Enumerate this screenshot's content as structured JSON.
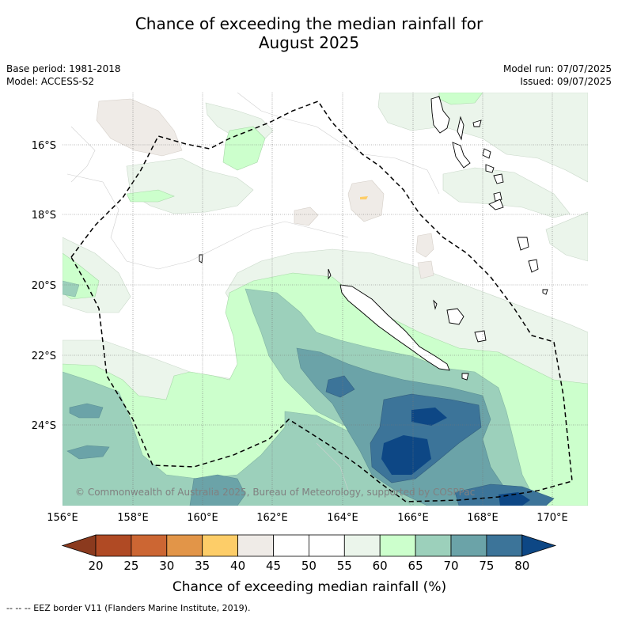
{
  "title": {
    "line1": "Chance of exceeding the median rainfall for",
    "line2": "August 2025"
  },
  "meta": {
    "base_period": "Base period: 1981-2018",
    "model": "Model: ACCESS-S2",
    "model_run": "Model run: 07/07/2025",
    "issued": "Issued: 09/07/2025"
  },
  "map": {
    "copyright": "© Commonwealth of Australia 2025, Bureau of Meteorology, supported by COSPPac",
    "lon_labels": [
      "156°E",
      "158°E",
      "160°E",
      "162°E",
      "164°E",
      "166°E",
      "168°E",
      "170°E"
    ],
    "lat_labels": [
      "16°S",
      "18°S",
      "20°S",
      "22°S",
      "24°S"
    ]
  },
  "colorbar": {
    "ticks": [
      "20",
      "25",
      "30",
      "35",
      "40",
      "45",
      "50",
      "55",
      "60",
      "65",
      "70",
      "75",
      "80"
    ],
    "label": "Chance of exceeding median rainfall (%)",
    "colors": [
      "#8b3a1e",
      "#b04a24",
      "#cc6633",
      "#e29548",
      "#fdcd68",
      "#efebe7",
      "#ffffff",
      "#ffffff",
      "#ebf5eb",
      "#ccffcc",
      "#9cd0bb",
      "#6ba3a8",
      "#3c7499",
      "#0d4785"
    ]
  },
  "footnote": "--  --  -- EEZ border V11 (Flanders Marine Institute, 2019)."
}
